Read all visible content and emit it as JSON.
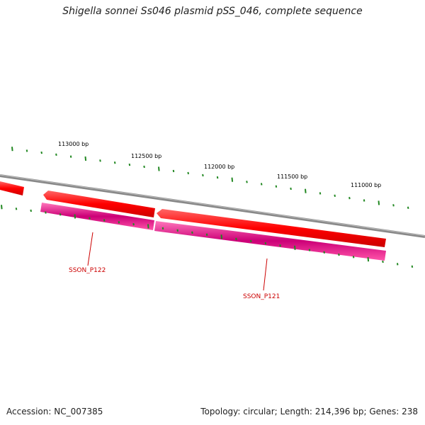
{
  "title": "Shigella sonnei Ss046 plasmid pSS_046, complete sequence",
  "footer": {
    "accession": "Accession: NC_007385",
    "summary": "Topology: circular; Length: 214,396 bp; Genes: 238"
  },
  "scale_labels": [
    "113000 bp",
    "112500 bp",
    "112000 bp",
    "111500 bp",
    "111000 bp"
  ],
  "genes": [
    {
      "label": "SSON_P122"
    },
    {
      "label": "SSON_P121"
    }
  ],
  "colors": {
    "backbone": "#808080",
    "cds_red": "#ff0000",
    "cds_pink": "#ff3399",
    "tick_green": "#228822",
    "gene_label": "#cc0000"
  }
}
